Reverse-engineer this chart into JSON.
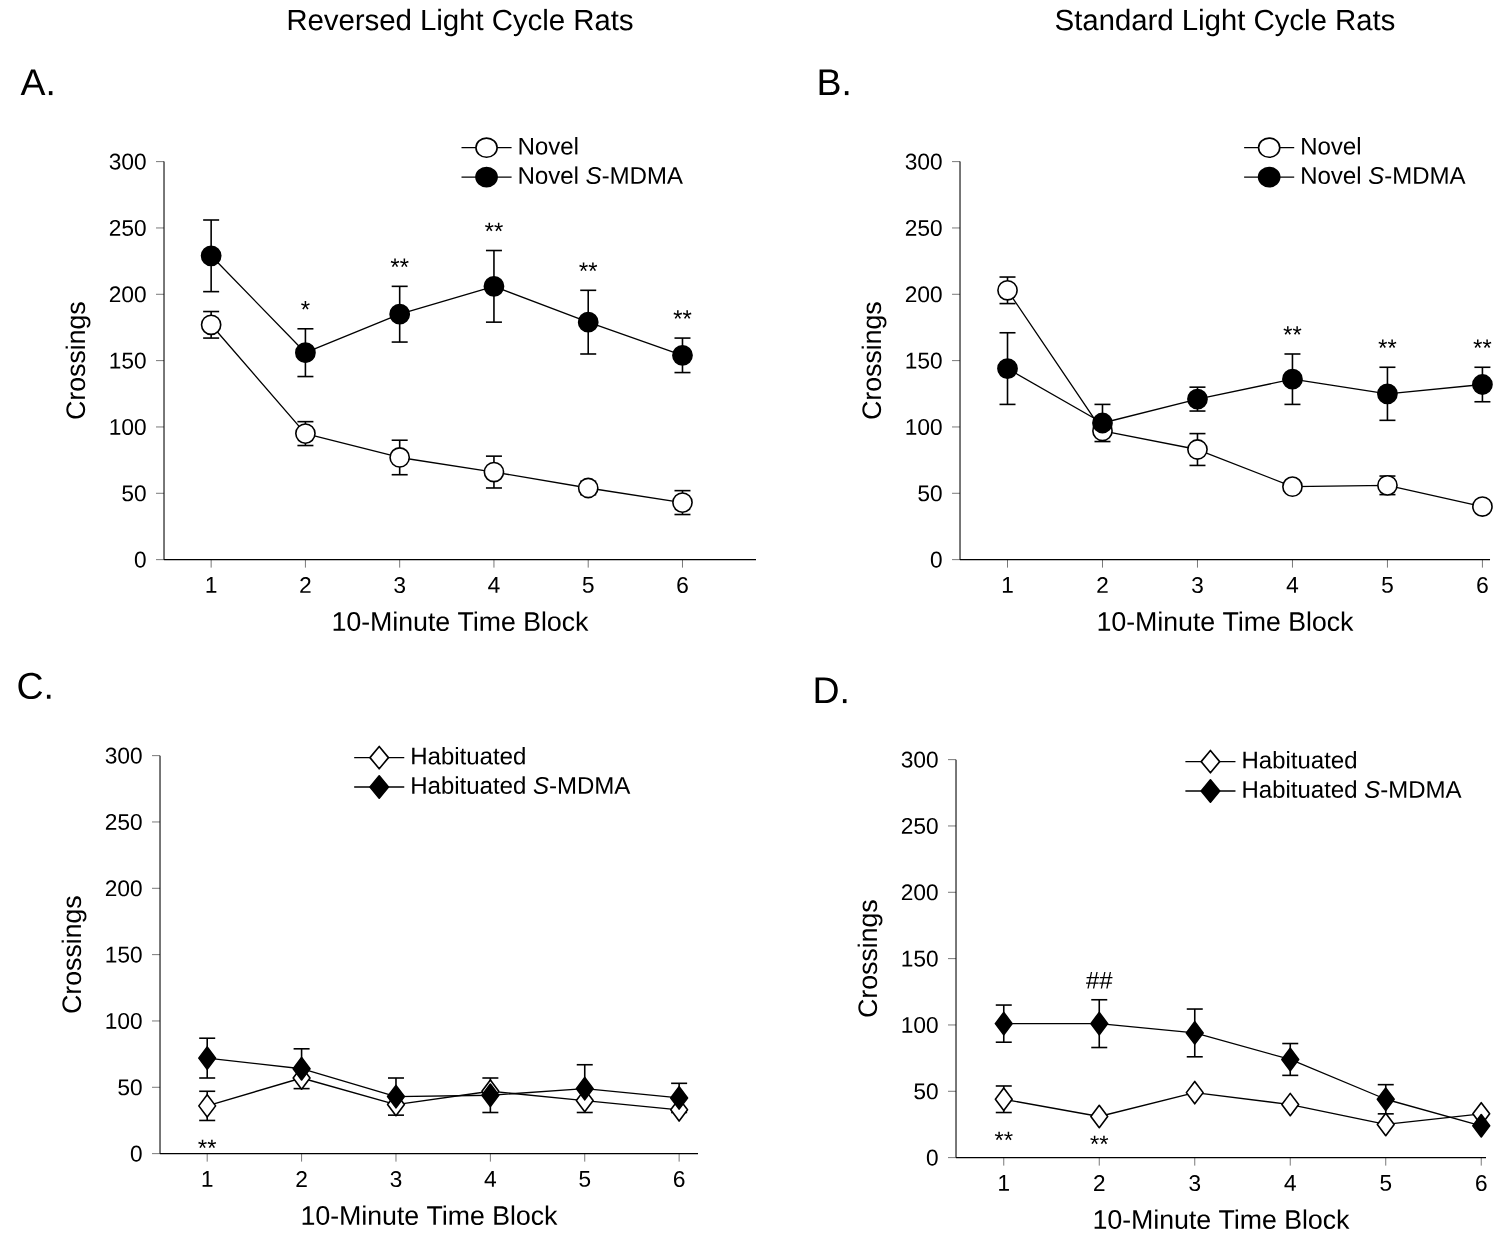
{
  "chart_data": [
    {
      "type": "line",
      "title": "Reversed Light Cycle Rats",
      "xlabel": "10-Minute Time Block",
      "ylabel": "Crossings",
      "categories": [
        "1",
        "2",
        "3",
        "4",
        "5",
        "6"
      ],
      "ylim": [
        0,
        300
      ],
      "yticks": [
        0,
        50,
        100,
        150,
        200,
        250,
        300
      ],
      "marker": "circle",
      "legend": "top right",
      "series": [
        {
          "name": "Novel",
          "color": "#ffffff",
          "values": [
            177,
            95,
            77,
            66,
            54,
            43
          ],
          "errors": [
            10,
            9,
            13,
            12,
            5,
            9
          ]
        },
        {
          "name": "Novel *S*-MDMA",
          "color": "#000000",
          "values": [
            229,
            156,
            185,
            206,
            179,
            154
          ],
          "errors": [
            27,
            18,
            21,
            27,
            24,
            13
          ]
        }
      ],
      "annotations": [
        "A.",
        {
          "text": "*",
          "x": "2",
          "y": 156
        },
        {
          "text": "**",
          "x": "3",
          "y": 185
        },
        {
          "text": "**",
          "x": "4",
          "y": 206
        },
        {
          "text": "**",
          "x": "5",
          "y": 179
        },
        {
          "text": "**",
          "x": "6",
          "y": 154
        }
      ]
    },
    {
      "type": "line",
      "title": "Standard Light Cycle Rats",
      "xlabel": "10-Minute Time Block",
      "ylabel": "Crossings",
      "categories": [
        "1",
        "2",
        "3",
        "4",
        "5",
        "6"
      ],
      "ylim": [
        0,
        300
      ],
      "yticks": [
        0,
        50,
        100,
        150,
        200,
        250,
        300
      ],
      "marker": "circle",
      "legend": "top right",
      "series": [
        {
          "name": "Novel",
          "color": "#ffffff",
          "values": [
            203,
            97,
            83,
            55,
            56,
            40
          ],
          "errors": [
            10,
            null,
            12,
            null,
            7,
            null
          ]
        },
        {
          "name": "Novel *S*-MDMA",
          "color": "#000000",
          "values": [
            144,
            103,
            121,
            136,
            125,
            132
          ],
          "errors": [
            27,
            14,
            9,
            19,
            20,
            13
          ]
        }
      ],
      "annotations": [
        "B.",
        {
          "text": "**",
          "x": "4",
          "y": 136
        },
        {
          "text": "**",
          "x": "5",
          "y": 125
        },
        {
          "text": "**",
          "x": "6",
          "y": 132
        }
      ]
    },
    {
      "type": "line",
      "xlabel": "10-Minute Time Block",
      "ylabel": "Crossings",
      "categories": [
        "1",
        "2",
        "3",
        "4",
        "5",
        "6"
      ],
      "ylim": [
        0,
        300
      ],
      "yticks": [
        0,
        50,
        100,
        150,
        200,
        250,
        300
      ],
      "marker": "diamond",
      "legend": "top right",
      "series": [
        {
          "name": "Habituated",
          "color": "#ffffff",
          "values": [
            36,
            57,
            37,
            47,
            40,
            33
          ],
          "errors": [
            11,
            null,
            null,
            null,
            null,
            null
          ]
        },
        {
          "name": "Habituated *S*-MDMA",
          "color": "#000000",
          "values": [
            72,
            64,
            43,
            44,
            49,
            42
          ],
          "errors": [
            15,
            15,
            14,
            13,
            18,
            11
          ]
        }
      ],
      "annotations": [
        "C.",
        {
          "text": "**",
          "x": "1",
          "y": 36
        }
      ]
    },
    {
      "type": "line",
      "xlabel": "10-Minute Time Block",
      "ylabel": "Crossings",
      "categories": [
        "1",
        "2",
        "3",
        "4",
        "5",
        "6"
      ],
      "ylim": [
        0,
        300
      ],
      "yticks": [
        0,
        50,
        100,
        150,
        200,
        250,
        300
      ],
      "marker": "diamond",
      "legend": "top right",
      "series": [
        {
          "name": "Habituated",
          "color": "#ffffff",
          "values": [
            44,
            31,
            49,
            40,
            25,
            33
          ],
          "errors": [
            10,
            null,
            null,
            null,
            null,
            null
          ]
        },
        {
          "name": "Habituated *S*-MDMA",
          "color": "#000000",
          "values": [
            101,
            101,
            94,
            74,
            44,
            24
          ],
          "errors": [
            14,
            18,
            18,
            12,
            11,
            null
          ]
        }
      ],
      "annotations": [
        "D.",
        {
          "text": "##",
          "x": "2",
          "y": 101
        },
        {
          "text": "**",
          "x": "1",
          "y": 44
        },
        {
          "text": "**",
          "x": "2",
          "y": 31
        }
      ]
    }
  ]
}
